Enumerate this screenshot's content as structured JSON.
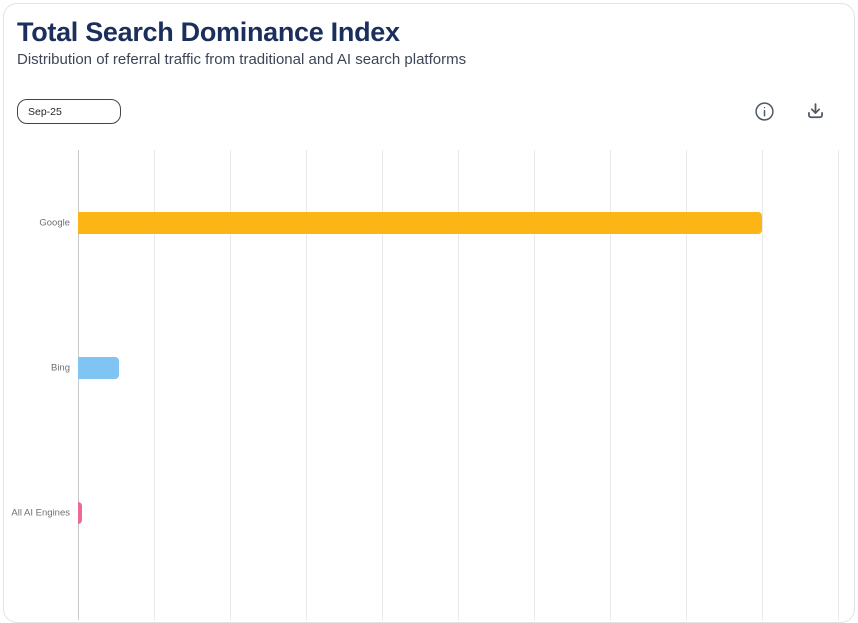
{
  "header": {
    "title": "Total Search Dominance Index",
    "subtitle": "Distribution of referral traffic from traditional and AI search platforms"
  },
  "toolbar": {
    "period_selector": {
      "value": "Sep-25"
    },
    "info_icon": "info-icon",
    "download_icon": "download-icon"
  },
  "chart_data": {
    "type": "bar",
    "orientation": "horizontal",
    "title": "Total Search Dominance Index",
    "categories": [
      "Google",
      "Bing",
      "All AI Engines"
    ],
    "values": [
      90,
      5.4,
      0.5
    ],
    "colors": [
      "#FBB615",
      "#7FC4F3",
      "#EC6A92"
    ],
    "xlabel": "",
    "ylabel": "",
    "xlim": [
      0,
      100
    ],
    "gridline_step": 10,
    "grid": "vertical",
    "tick_labels_visible": false,
    "legend": "none",
    "accent_colors": {
      "title": "#1b2f5c",
      "subtitle": "#3d4557",
      "icon": "#4e5864",
      "gridline": "#eaeaec",
      "axis_line": "#c7c8cc"
    }
  }
}
